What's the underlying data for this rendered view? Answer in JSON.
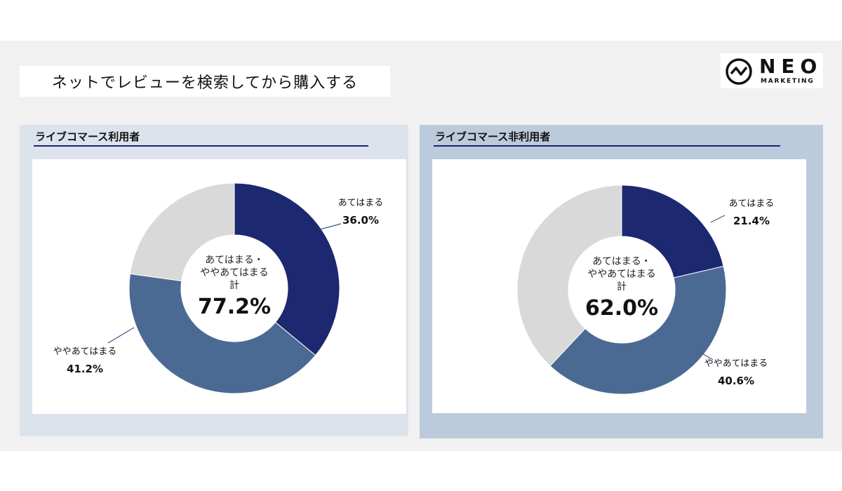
{
  "page_title": "ネットでレビューを検索してから購入する",
  "logo": {
    "word": "NEO",
    "sub": "MARKETING"
  },
  "chart_data": [
    {
      "type": "pie",
      "panel_title": "ライブコマース利用者",
      "center_label_lines": [
        "あてはまる・",
        "ややあてはまる",
        "計"
      ],
      "center_value": "77.2%",
      "slices": [
        {
          "label": "あてはまる",
          "value": 36.0,
          "display": "36.0%",
          "color": "#1c2870"
        },
        {
          "label": "ややあてはまる",
          "value": 41.2,
          "display": "41.2%",
          "color": "#4b6a93"
        },
        {
          "label": "",
          "value": 22.8,
          "display": "",
          "color": "#d9d9d9"
        }
      ]
    },
    {
      "type": "pie",
      "panel_title": "ライブコマース非利用者",
      "center_label_lines": [
        "あてはまる・",
        "ややあてはまる",
        "計"
      ],
      "center_value": "62.0%",
      "slices": [
        {
          "label": "あてはまる",
          "value": 21.4,
          "display": "21.4%",
          "color": "#1c2870"
        },
        {
          "label": "ややあてはまる",
          "value": 40.6,
          "display": "40.6%",
          "color": "#4b6a93"
        },
        {
          "label": "",
          "value": 38.0,
          "display": "",
          "color": "#d9d9d9"
        }
      ]
    }
  ]
}
